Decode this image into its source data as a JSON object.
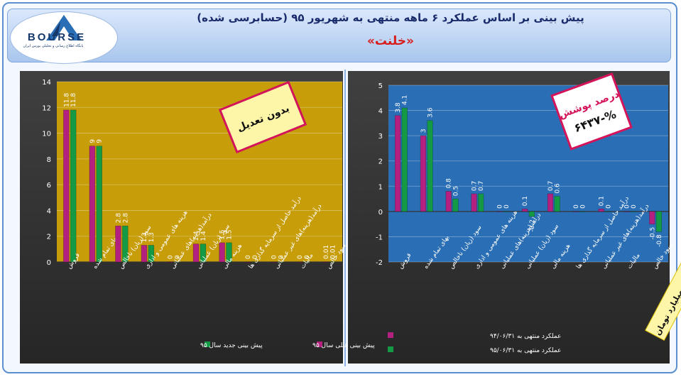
{
  "header": {
    "title": "پیش بینی بر اساس عملکرد ۶ ماهه منتهی به شهریور ۹۵ (حسابرسی شده)",
    "company": "«خلنت»",
    "logo_word": "BOURSE",
    "logo_subtitle": "پایگاه اطلاع رسانی و تحلیلی بورس ایران"
  },
  "left_badge": "بدون تعدیل",
  "right_badge": {
    "line1": "درصد پوشش",
    "line2": "%-۶۴۳۷"
  },
  "corner_note": "ارقام به میلیارد تومان",
  "colors": {
    "magenta": "#b3207f",
    "green": "#149a45",
    "gold": "#c79d0a",
    "blue": "#2a6fb5",
    "badge_border": "#d4145a",
    "badge_fill": "#fdf6a8"
  },
  "chart_data": [
    {
      "type": "bar",
      "categories": [
        "فروش",
        "بهای تمام شده",
        "سود (زیان) ناخالص",
        "هزینه های عمومی و اداری",
        "درآمد(هزینه)های عملیاتی",
        "سود (زیان) عملیاتی",
        "هزینه مالی",
        "درآمد حاصل از سرمایه گذاری ها",
        "درآمد(هزینه)های غیر عملیاتی",
        "مالیات",
        "سود خالص"
      ],
      "series": [
        {
          "name": "پیش بینی قبلی سال ۹۵",
          "values": [
            11.8,
            9,
            2.8,
            1.3,
            0,
            1.4,
            1.5,
            0,
            0,
            0,
            0.01
          ],
          "labels": [
            "11.8",
            "9",
            "2.8",
            "1.3",
            "0",
            "1.4",
            "1.5",
            "0",
            "0",
            "0",
            "0.01"
          ]
        },
        {
          "name": "پیش بینی جدید سال ۹۵",
          "values": [
            11.8,
            9,
            2.8,
            1.3,
            0,
            1.4,
            1.5,
            0,
            0,
            0,
            0.01
          ],
          "labels": [
            "11.8",
            "9",
            "2.8",
            "1.3",
            "0",
            "1.4",
            "1.5",
            "0",
            "0",
            "0",
            "0.01"
          ]
        }
      ],
      "ylim": [
        0,
        14
      ],
      "yticks": [
        "0",
        "2",
        "4",
        "6",
        "8",
        "10",
        "12",
        "14"
      ],
      "grid": true,
      "legend": "bottom"
    },
    {
      "type": "bar",
      "categories": [
        "فروش",
        "بهای تمام شده",
        "سود (زیان) ناخالص",
        "هزینه های عمومی و اداری",
        "درآمد(هزینه)های عملیاتی",
        "سود (زیان) عملیاتی",
        "هزینه مالی",
        "درآمد حاصل از سرمایه گذاری ها",
        "درآمد(هزینه)های غیر عملیاتی",
        "مالیات",
        "سود خالص"
      ],
      "series": [
        {
          "name": "عملکرد منتهی به ۹۴/۰۶/۳۱",
          "values": [
            3.8,
            3,
            0.8,
            0.7,
            0,
            0.1,
            0.7,
            0,
            0.1,
            0,
            -0.5
          ],
          "labels": [
            "3.8",
            "3",
            "0.8",
            "0.7",
            "0",
            "0.1",
            "0.7",
            "0",
            "0.1",
            "0",
            "-0.5"
          ]
        },
        {
          "name": "عملکرد منتهی به ۹۵/۰۶/۳۱",
          "values": [
            4.1,
            3.6,
            0.5,
            0.7,
            0,
            -0.2,
            0.6,
            0,
            0,
            0,
            -0.8
          ],
          "labels": [
            "4.1",
            "3.6",
            "0.5",
            "0.7",
            "0",
            "-0.2",
            "0.6",
            "0",
            "0",
            "0",
            "-0.8"
          ]
        }
      ],
      "ylim": [
        -2,
        5
      ],
      "yticks": [
        "-2",
        "-1",
        "0",
        "1",
        "2",
        "3",
        "4",
        "5"
      ],
      "grid": true,
      "legend": "bottom"
    }
  ]
}
